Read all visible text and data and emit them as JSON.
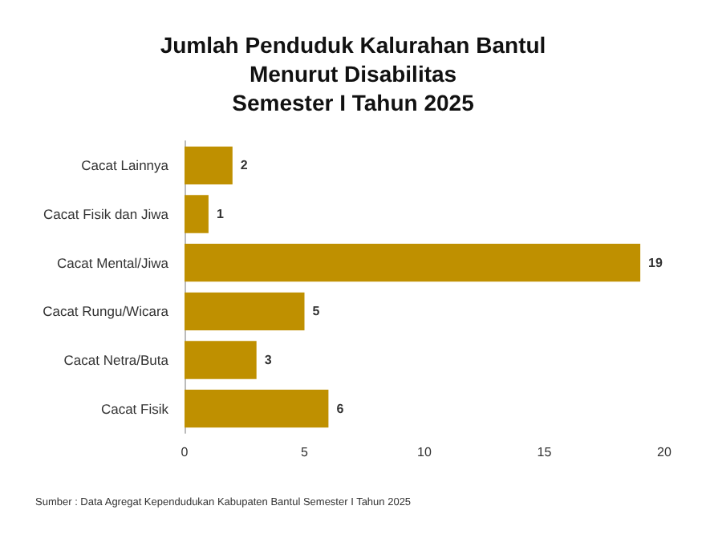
{
  "chart_data": {
    "type": "bar",
    "orientation": "horizontal",
    "title": "Jumlah Penduduk Kalurahan Bantul\nMenurut Disabilitas\nSemester I Tahun 2025",
    "categories": [
      "Cacat Lainnya",
      "Cacat Fisik dan Jiwa",
      "Cacat Mental/Jiwa",
      "Cacat Rungu/Wicara",
      "Cacat Netra/Buta",
      "Cacat Fisik"
    ],
    "values": [
      2,
      1,
      19,
      5,
      3,
      6
    ],
    "color": "#bf9000",
    "data_labels": true,
    "xlim": [
      0,
      20
    ],
    "xticks": [
      0,
      5,
      10,
      15,
      20
    ],
    "grid": false,
    "annotations": [
      "Sumber : Data Agregat Kependudukan Kabupaten Bantul Semester I Tahun 2025"
    ]
  }
}
